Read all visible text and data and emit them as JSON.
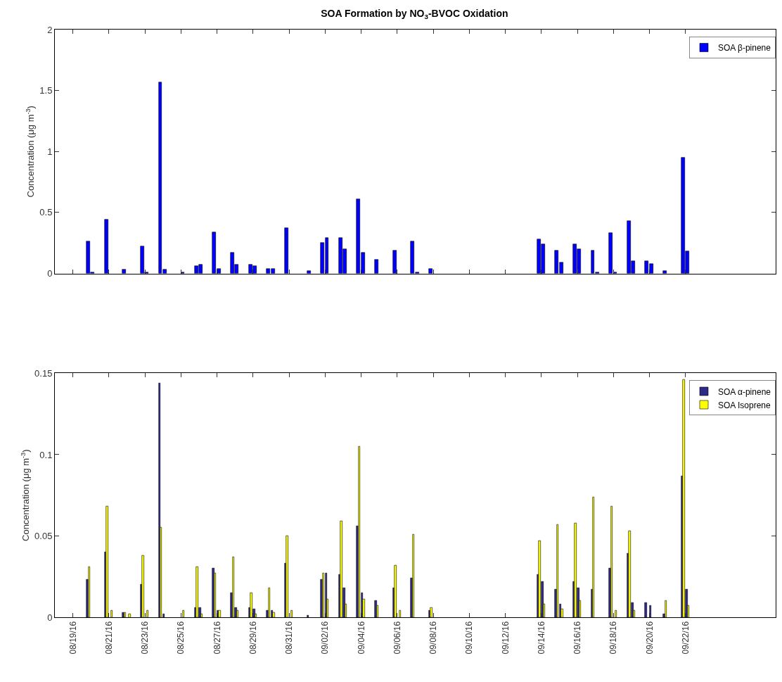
{
  "chart_data": [
    {
      "type": "bar",
      "title": "SOA Formation by NO$_{3}$-BVOC Oxidation",
      "ylabel": "Concentration (μg m$^{-3}$)",
      "x": [
        "--08-19T20:30",
        "--08-20T02:30",
        "--08-20T20:30",
        "--08-21T20:30",
        "--08-22T20:30",
        "--08-23T02:30",
        "--08-23T20:30",
        "--08-24T02:30",
        "--08-25T02:30",
        "--08-25T20:30",
        "--08-26T02:30",
        "--08-26T20:30",
        "--08-27T02:30",
        "--08-27T20:30",
        "--08-28T02:30",
        "--08-28T20:30",
        "--08-29T02:30",
        "--08-29T20:30",
        "--08-30T02:30",
        "--08-30T20:30",
        "--09-01T02:30",
        "--09-01T20:30",
        "--09-02T02:30",
        "--09-02T20:30",
        "--09-03T02:30",
        "--09-03T20:30",
        "--09-04T02:30",
        "--09-04T20:30",
        "--09-05T20:30",
        "--09-06T20:30",
        "--09-07T02:30",
        "--09-07T20:30",
        "--09-13T20:30",
        "--09-14T02:30",
        "--09-14T20:30",
        "--09-15T02:30",
        "--09-15T20:30",
        "--09-16T02:30",
        "--09-16T20:30",
        "--09-17T02:30",
        "--09-17T20:30",
        "--09-18T02:30",
        "--09-18T20:30",
        "--09-19T02:30",
        "--09-19T20:30",
        "--09-20T02:30",
        "--09-20T20:30",
        "--09-21T20:30",
        "--09-22T02:30"
      ],
      "series": [
        {
          "name": "SOA β-pinene",
          "color": "#0000ff",
          "values": [
            0.26,
            0.01,
            0.44,
            0.03,
            0.22,
            0.01,
            1.57,
            0.03,
            0.01,
            0.06,
            0.07,
            0.34,
            0.04,
            0.17,
            0.07,
            0.07,
            0.06,
            0.04,
            0.04,
            0.37,
            0.02,
            0.25,
            0.29,
            0.29,
            0.2,
            0.61,
            0.17,
            0.11,
            0.19,
            0.26,
            0.01,
            0.04,
            0.28,
            0.24,
            0.19,
            0.09,
            0.24,
            0.2,
            0.19,
            0.01,
            0.33,
            0.01,
            0.43,
            0.1,
            0.1,
            0.08,
            0.02,
            0.95,
            0.18
          ]
        }
      ],
      "xlim": [
        "--08-18",
        "--09-27"
      ],
      "xticks": [
        {
          "value": "--08-19",
          "label": null
        },
        {
          "value": "--08-21",
          "label": null
        },
        {
          "value": "--08-23",
          "label": null
        },
        {
          "value": "--08-25",
          "label": null
        },
        {
          "value": "--08-27",
          "label": null
        },
        {
          "value": "--08-29",
          "label": null
        },
        {
          "value": "--08-31",
          "label": null
        },
        {
          "value": "--09-02",
          "label": null
        },
        {
          "value": "--09-04",
          "label": null
        },
        {
          "value": "--09-06",
          "label": null
        },
        {
          "value": "--09-08",
          "label": null
        },
        {
          "value": "--09-10",
          "label": null
        },
        {
          "value": "--09-12",
          "label": null
        },
        {
          "value": "--09-14",
          "label": null
        },
        {
          "value": "--09-16",
          "label": null
        },
        {
          "value": "--09-18",
          "label": null
        },
        {
          "value": "--09-20",
          "label": null
        },
        {
          "value": "--09-22",
          "label": null
        }
      ],
      "ylim": [
        0,
        2
      ],
      "yticks": [
        0,
        0.5,
        1,
        1.5,
        2
      ],
      "legend": "top right",
      "tick_labels": "y"
    },
    {
      "type": "bar",
      "ylabel": "Concentration (μg m$^{-3}$)",
      "x": [
        "--08-19T20:30",
        "--08-20T20:30",
        "--08-21T02:30",
        "--08-21T20:30",
        "--08-22T02:30",
        "--08-22T20:30",
        "--08-23T02:30",
        "--08-23T20:30",
        "--08-24T02:30",
        "--08-25T02:30",
        "--08-25T20:30",
        "--08-26T02:30",
        "--08-26T20:30",
        "--08-27T02:30",
        "--08-27T20:30",
        "--08-28T02:30",
        "--08-28T20:30",
        "--08-29T02:30",
        "--08-29T20:30",
        "--08-30T02:30",
        "--08-30T20:30",
        "--08-31T02:30",
        "--09-01T02:30",
        "--09-01T20:30",
        "--09-02T02:30",
        "--09-02T20:30",
        "--09-03T02:30",
        "--09-03T20:30",
        "--09-04T02:30",
        "--09-04T20:30",
        "--09-05T20:30",
        "--09-06T02:30",
        "--09-06T20:30",
        "--09-07T20:30",
        "--09-13T20:30",
        "--09-14T02:30",
        "--09-14T20:30",
        "--09-15T02:30",
        "--09-15T20:30",
        "--09-16T02:30",
        "--09-16T20:30",
        "--09-17T20:30",
        "--09-18T02:30",
        "--09-18T20:30",
        "--09-19T02:30",
        "--09-19T20:30",
        "--09-20T02:30",
        "--09-20T20:30",
        "--09-21T20:30",
        "--09-22T02:30"
      ],
      "series": [
        {
          "name": "SOA α-pinene",
          "color": "#2e2a8a",
          "values": [
            0.023,
            0.04,
            null,
            0.003,
            null,
            0.02,
            null,
            0.144,
            0.002,
            null,
            0.006,
            0.006,
            0.03,
            0.004,
            0.015,
            0.006,
            0.006,
            0.005,
            0.004,
            0.004,
            0.033,
            null,
            0.001,
            0.023,
            0.027,
            0.026,
            0.018,
            0.056,
            0.015,
            0.01,
            0.018,
            null,
            0.024,
            0.004,
            0.026,
            0.022,
            0.017,
            0.008,
            0.022,
            0.018,
            0.017,
            0.03,
            null,
            0.039,
            0.009,
            0.009,
            0.007,
            0.002,
            0.087,
            0.017
          ]
        },
        {
          "name": "SOA Isoprene",
          "color": "#ffff00",
          "values": [
            0.031,
            0.068,
            0.004,
            0.003,
            0.002,
            0.038,
            0.004,
            0.055,
            null,
            0.004,
            0.031,
            0.002,
            0.027,
            0.004,
            0.037,
            0.004,
            0.015,
            0.002,
            0.018,
            0.003,
            0.05,
            0.004,
            null,
            0.027,
            0.011,
            0.059,
            0.008,
            0.105,
            0.011,
            0.007,
            0.032,
            0.004,
            0.051,
            0.006,
            0.047,
            0.008,
            0.057,
            0.005,
            0.058,
            0.01,
            0.074,
            0.068,
            0.004,
            0.053,
            0.004,
            null,
            null,
            0.01,
            0.146,
            0.007
          ]
        }
      ],
      "xlim": [
        "--08-18",
        "--09-27"
      ],
      "xticks": [
        {
          "value": "--08-19",
          "label": "08/19/16"
        },
        {
          "value": "--08-21",
          "label": "08/21/16"
        },
        {
          "value": "--08-23",
          "label": "08/23/16"
        },
        {
          "value": "--08-25",
          "label": "08/25/16"
        },
        {
          "value": "--08-27",
          "label": "08/27/16"
        },
        {
          "value": "--08-29",
          "label": "08/29/16"
        },
        {
          "value": "--08-31",
          "label": "08/31/16"
        },
        {
          "value": "--09-02",
          "label": "09/02/16"
        },
        {
          "value": "--09-04",
          "label": "09/04/16"
        },
        {
          "value": "--09-06",
          "label": "09/06/16"
        },
        {
          "value": "--09-08",
          "label": "09/08/16"
        },
        {
          "value": "--09-10",
          "label": "09/10/16"
        },
        {
          "value": "--09-12",
          "label": "09/12/16"
        },
        {
          "value": "--09-14",
          "label": "09/14/16"
        },
        {
          "value": "--09-16",
          "label": "09/16/16"
        },
        {
          "value": "--09-18",
          "label": "09/18/16"
        },
        {
          "value": "--09-20",
          "label": "09/20/16"
        },
        {
          "value": "--09-22",
          "label": "09/22/16"
        }
      ],
      "ylim": [
        0,
        0.15
      ],
      "yticks": [
        0,
        0.05,
        0.1,
        0.15
      ],
      "legend": "top right"
    }
  ]
}
